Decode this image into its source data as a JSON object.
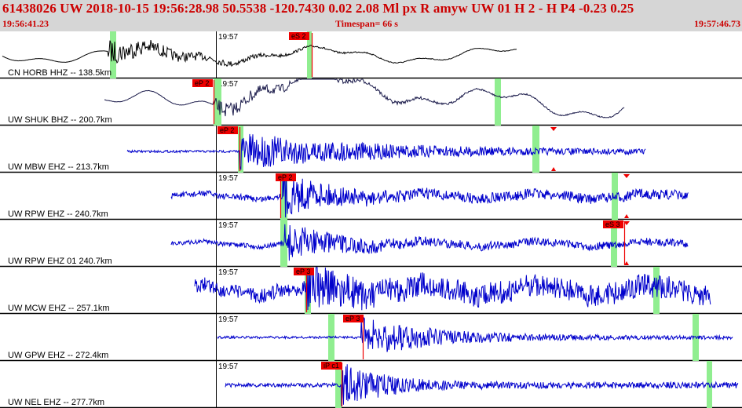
{
  "header": {
    "title": "61438026 UW 2018-10-15 19:56:28.98   50.5538 -120.7430   0.02   2.08 Ml  px  R amyw      UW 01  H   2  -  H P4   -0.23  0.25",
    "start_time": "19:56:41.23",
    "timespan": "Timespan=  66 s",
    "end_time": "19:57:46.73"
  },
  "tick_label": "19:57",
  "colors": {
    "header_bg": "#d6d6d6",
    "header_text": "#cc0000",
    "trace_blue": "#0000cc",
    "trace_dark": "#1a1a4a",
    "trace_black": "#000000",
    "window_green": "#90ee90",
    "pick_red": "#ee0000"
  },
  "traces": [
    {
      "label": "CN HORB HHZ -- 138.5km",
      "color": "black",
      "picks": [
        {
          "label": "eS 2"
        }
      ]
    },
    {
      "label": "UW SHUK BHZ -- 200.7km",
      "color": "dark",
      "picks": [
        {
          "label": "eP 2"
        }
      ]
    },
    {
      "label": "UW MBW EHZ -- 213.7km",
      "color": "blue",
      "picks": [
        {
          "label": "eP 2"
        }
      ]
    },
    {
      "label": "UW RPW EHZ -- 240.7km",
      "color": "blue",
      "picks": [
        {
          "label": "eP 2"
        }
      ]
    },
    {
      "label": "UW RPW EHZ 01 240.7km",
      "color": "blue",
      "picks": [
        {
          "label": "eS 3"
        }
      ]
    },
    {
      "label": "UW MCW EHZ -- 257.1km",
      "color": "blue",
      "picks": [
        {
          "label": "eP 3"
        }
      ]
    },
    {
      "label": "UW GPW EHZ -- 272.4km",
      "color": "blue",
      "picks": [
        {
          "label": "eP 3"
        }
      ]
    },
    {
      "label": "UW NEL EHZ -- 277.7km",
      "color": "blue",
      "picks": [
        {
          "label": "iP c1"
        }
      ]
    }
  ]
}
